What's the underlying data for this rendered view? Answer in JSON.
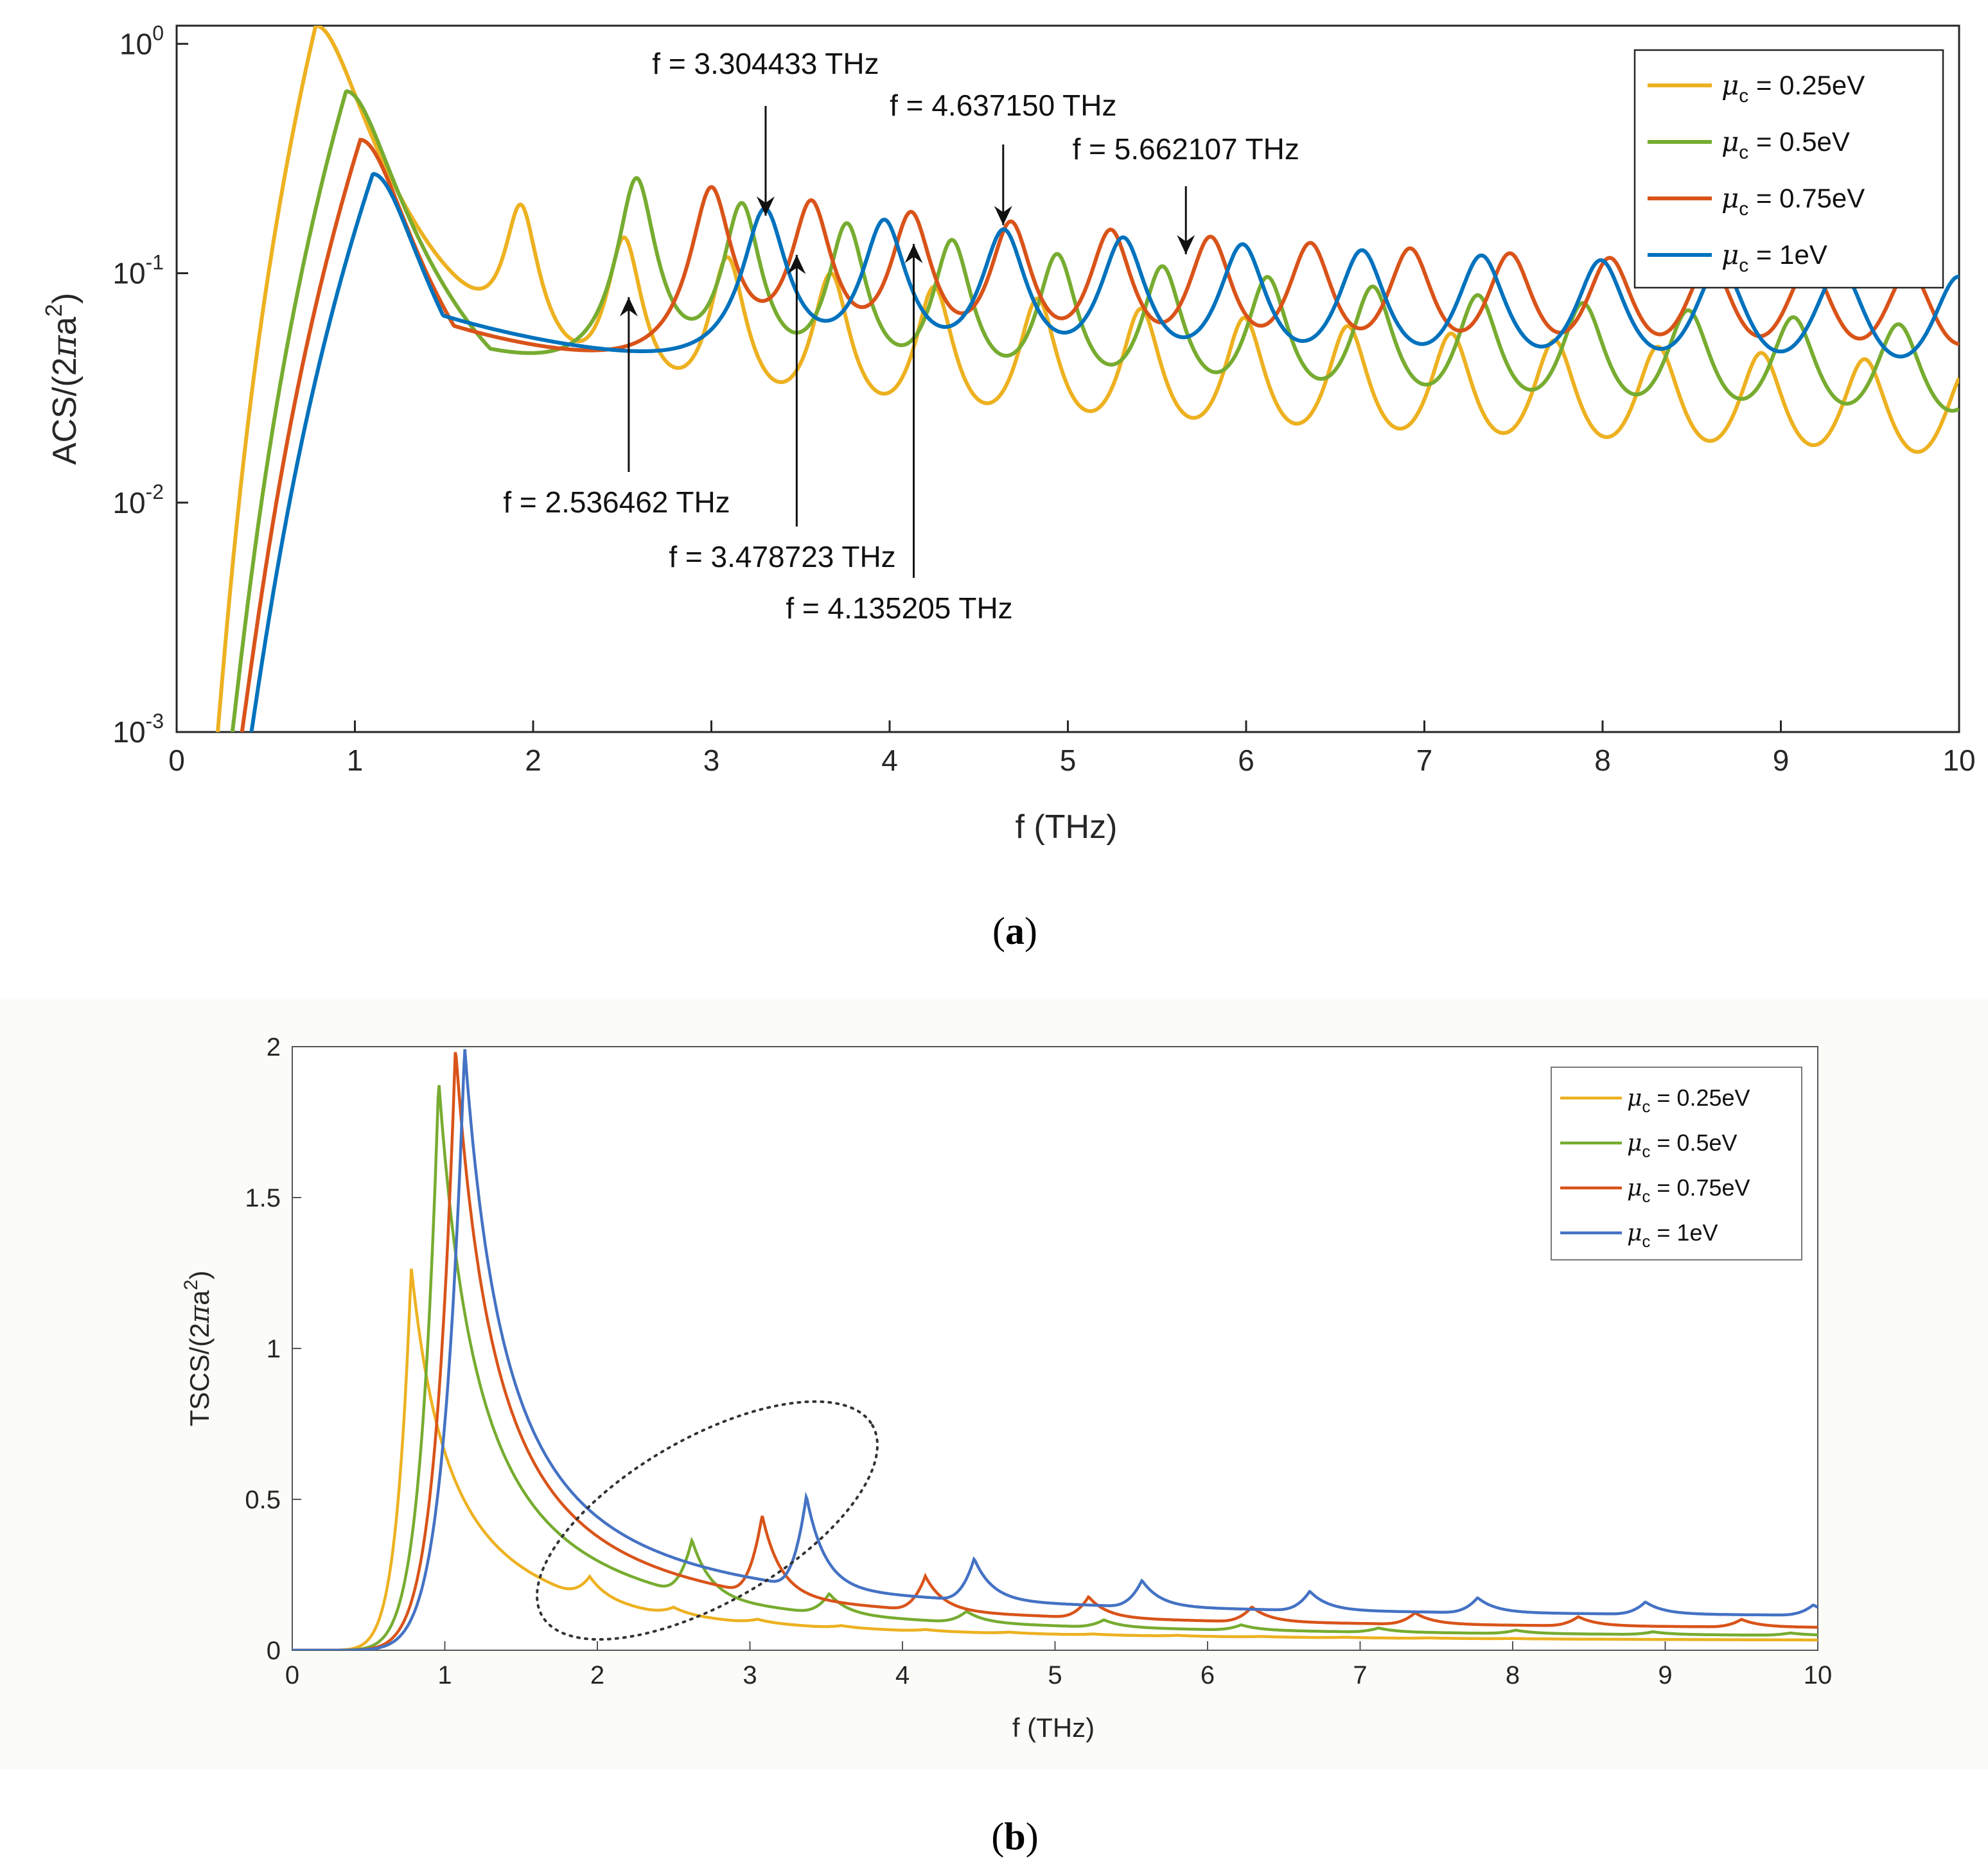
{
  "chart_data": [
    {
      "panel": "a",
      "type": "line",
      "caption_label": "a",
      "xlabel": "f (THz)",
      "ylabel": "ACS/(2πa²)",
      "ylabel_base": "ACS/(2",
      "ylabel_pi": "π",
      "ylabel_a": "a",
      "ylabel_sup": "2",
      "ylabel_close": ")",
      "yscale": "log",
      "xlim": [
        0,
        10
      ],
      "ylim": [
        0.001,
        1.2
      ],
      "xticks": [
        "0",
        "1",
        "2",
        "3",
        "4",
        "5",
        "6",
        "7",
        "8",
        "9",
        "10"
      ],
      "yticks": [
        {
          "value": 1,
          "base": "10",
          "exp": "0"
        },
        {
          "value": 0.1,
          "base": "10",
          "exp": "-1"
        },
        {
          "value": 0.01,
          "base": "10",
          "exp": "-2"
        },
        {
          "value": 0.001,
          "base": "10",
          "exp": "-3"
        }
      ],
      "legend_position": "top-right",
      "series": [
        {
          "name": "μc = 0.25eV",
          "mu_label": "μ",
          "sub": "c",
          "rest": " = 0.25eV",
          "color": "#EDB120",
          "main_peak": [
            0.78,
            1.2
          ],
          "peak_spacing": 0.58,
          "first_mode": 1.93,
          "base_at_1": 0.055,
          "decay": 1.15,
          "peak_height": 0.17,
          "height_decay": 0.55,
          "width": 0.085
        },
        {
          "name": "μc = 0.5eV",
          "mu_label": "μ",
          "sub": "c",
          "rest": " = 0.5eV",
          "color": "#77AC30",
          "main_peak": [
            0.95,
            0.62
          ],
          "peak_spacing": 0.59,
          "first_mode": 2.58,
          "base_at_1": 0.075,
          "decay": 1.0,
          "peak_height": 0.25,
          "height_decay": 0.6,
          "width": 0.09
        },
        {
          "name": "μc = 0.75eV",
          "mu_label": "μ",
          "sub": "c",
          "rest": " = 0.75eV",
          "color": "#D95319",
          "main_peak": [
            1.03,
            0.38
          ],
          "peak_spacing": 0.56,
          "first_mode": 3.0,
          "base_at_1": 0.085,
          "decay": 0.92,
          "peak_height": 0.22,
          "height_decay": 0.35,
          "width": 0.1
        },
        {
          "name": "μc = 1eV",
          "mu_label": "μ",
          "sub": "c",
          "rest": " = 1eV",
          "color": "#0072BD",
          "main_peak": [
            1.1,
            0.27
          ],
          "peak_spacing": 0.67,
          "first_mode": 3.3,
          "base_at_1": 0.09,
          "decay": 0.85,
          "peak_height": 0.17,
          "height_decay": 0.28,
          "width": 0.11
        }
      ],
      "annotations": [
        {
          "text": "f = 3.304433 THz",
          "x": 3.304433,
          "y": 0.165,
          "direction": "down"
        },
        {
          "text": "f = 4.637150 THz",
          "x": 4.63715,
          "y": 0.15,
          "direction": "down"
        },
        {
          "text": "f = 5.662107 THz",
          "x": 5.662107,
          "y": 0.112,
          "direction": "down"
        },
        {
          "text": "f = 2.536462 THz",
          "x": 2.536462,
          "y": 0.085,
          "direction": "up"
        },
        {
          "text": "f = 3.478723 THz",
          "x": 3.478723,
          "y": 0.13,
          "direction": "up"
        },
        {
          "text": "f = 4.135205 THz",
          "x": 4.135205,
          "y": 0.145,
          "direction": "up"
        }
      ]
    },
    {
      "panel": "b",
      "type": "line",
      "caption_label": "b",
      "xlabel": "f (THz)",
      "ylabel": "TSCS/(2πa²)",
      "ylabel_base": "TSCS/(2",
      "ylabel_pi": "π",
      "ylabel_a": "a",
      "ylabel_sup": "2",
      "ylabel_close": ")",
      "yscale": "linear",
      "xlim": [
        0,
        10
      ],
      "ylim": [
        0,
        2
      ],
      "xticks": [
        "0",
        "1",
        "2",
        "3",
        "4",
        "5",
        "6",
        "7",
        "8",
        "9",
        "10"
      ],
      "yticks": [
        "0",
        "0.5",
        "1",
        "1.5",
        "2"
      ],
      "legend_position": "top-right",
      "series": [
        {
          "name": "μc = 0.25eV",
          "mu_label": "μ",
          "sub": "c",
          "rest": " = 0.25eV",
          "color": "#EDB120",
          "main_peak": [
            0.78,
            1.27
          ],
          "first_mode": 1.95,
          "peak_spacing": 0.55,
          "tail": 0.025,
          "step": 0.07,
          "step_decay": 1.0,
          "width": 0.12
        },
        {
          "name": "μc = 0.5eV",
          "mu_label": "μ",
          "sub": "c",
          "rest": " = 0.5eV",
          "color": "#77AC30",
          "main_peak": [
            0.96,
            1.89
          ],
          "first_mode": 2.62,
          "peak_spacing": 0.9,
          "tail": 0.035,
          "step": 0.18,
          "step_decay": 0.9,
          "width": 0.13
        },
        {
          "name": "μc = 0.75eV",
          "mu_label": "μ",
          "sub": "c",
          "rest": " = 0.75eV",
          "color": "#D95319",
          "main_peak": [
            1.07,
            2.0
          ],
          "first_mode": 3.08,
          "peak_spacing": 1.07,
          "tail": 0.06,
          "step": 0.26,
          "step_decay": 0.75,
          "width": 0.14
        },
        {
          "name": "μc = 1eV",
          "mu_label": "μ",
          "sub": "c",
          "rest": " = 1eV",
          "color": "#4472C4",
          "main_peak": [
            1.13,
            2.0
          ],
          "first_mode": 3.37,
          "peak_spacing": 1.1,
          "tail": 0.1,
          "step": 0.3,
          "step_decay": 0.7,
          "width": 0.15
        }
      ],
      "highlight_ellipse": {
        "center_x": 2.72,
        "center_y": 0.43,
        "rx": 1.25,
        "ry": 0.17,
        "rotation_deg": -30
      }
    }
  ]
}
